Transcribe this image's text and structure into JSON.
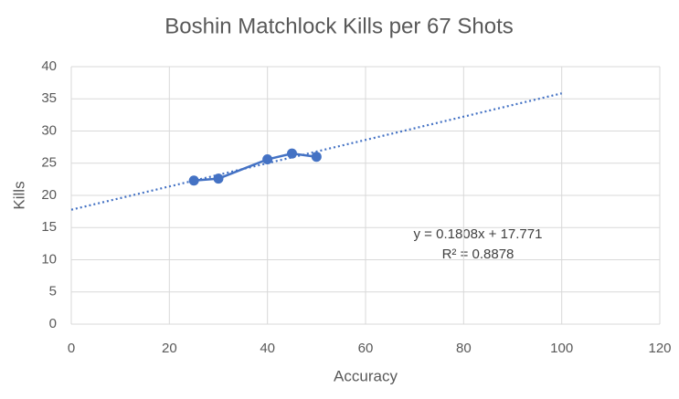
{
  "chart_data": {
    "type": "scatter",
    "title": "Boshin Matchlock Kills per 67 Shots",
    "x_label": "Accuracy",
    "y_label": "Kills",
    "series": [
      {
        "name": "Kills",
        "color": "#4472c4",
        "x": [
          25,
          30,
          40,
          45,
          50
        ],
        "values": [
          22.3,
          22.6,
          25.6,
          26.5,
          26.0
        ]
      }
    ],
    "trendline": {
      "color": "#4472c4",
      "x": [
        0,
        100
      ],
      "values": [
        17.771,
        35.851
      ],
      "equation": "y = 0.1808x + 17.771",
      "r_squared": "R² = 0.8878"
    },
    "xlim": [
      0,
      120
    ],
    "xticks": [
      0,
      20,
      40,
      60,
      80,
      100,
      120
    ],
    "ylim": [
      0,
      40
    ],
    "yticks": [
      0,
      5,
      10,
      15,
      20,
      25,
      30,
      35,
      40
    ],
    "grid": true
  }
}
